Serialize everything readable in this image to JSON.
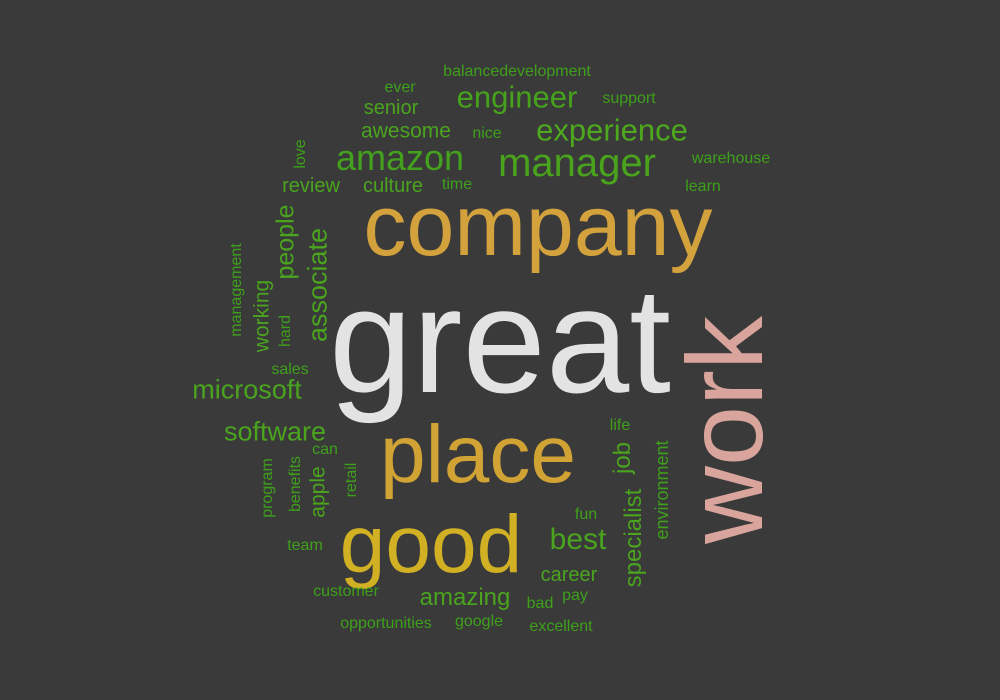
{
  "words": [
    {
      "text": "great",
      "color": "#e3e3e3",
      "vertical": false
    },
    {
      "text": "company",
      "color": "#d3a23c",
      "vertical": false
    },
    {
      "text": "work",
      "color": "#d9a49c",
      "vertical": true
    },
    {
      "text": "place",
      "color": "#d1a335",
      "vertical": false
    },
    {
      "text": "good",
      "color": "#d1b023",
      "vertical": false
    },
    {
      "text": "manager",
      "color": "#49a31c",
      "vertical": false
    },
    {
      "text": "amazon",
      "color": "#43a11e",
      "vertical": false
    },
    {
      "text": "experience",
      "color": "#4ea81d",
      "vertical": false
    },
    {
      "text": "engineer",
      "color": "#46a21c",
      "vertical": false
    },
    {
      "text": "microsoft",
      "color": "#4aa41e",
      "vertical": false
    },
    {
      "text": "software",
      "color": "#4aa41e",
      "vertical": false
    },
    {
      "text": "best",
      "color": "#4aa41e",
      "vertical": false
    },
    {
      "text": "amazing",
      "color": "#4aa41e",
      "vertical": false
    },
    {
      "text": "associate",
      "color": "#4aa41e",
      "vertical": true
    },
    {
      "text": "people",
      "color": "#4aa41e",
      "vertical": true
    },
    {
      "text": "specialist",
      "color": "#4aa41e",
      "vertical": true
    },
    {
      "text": "job",
      "color": "#4aa41e",
      "vertical": true
    },
    {
      "text": "working",
      "color": "#4aa41e",
      "vertical": true
    },
    {
      "text": "apple",
      "color": "#4aa41e",
      "vertical": true
    },
    {
      "text": "environment",
      "color": "#3ea01a",
      "vertical": true
    },
    {
      "text": "management",
      "color": "#3ea01a",
      "vertical": true
    },
    {
      "text": "culture",
      "color": "#4aa41e",
      "vertical": false
    },
    {
      "text": "review",
      "color": "#4aa41e",
      "vertical": false
    },
    {
      "text": "awesome",
      "color": "#4aa41e",
      "vertical": false
    },
    {
      "text": "senior",
      "color": "#4aa41e",
      "vertical": false
    },
    {
      "text": "career",
      "color": "#4aa41e",
      "vertical": false
    },
    {
      "text": "time",
      "color": "#3ea01a",
      "vertical": false
    },
    {
      "text": "ever",
      "color": "#3ea01a",
      "vertical": false
    },
    {
      "text": "nice",
      "color": "#3ea01a",
      "vertical": false
    },
    {
      "text": "balancedevelopment",
      "color": "#3ea01a",
      "vertical": false
    },
    {
      "text": "support",
      "color": "#3ea01a",
      "vertical": false
    },
    {
      "text": "warehouse",
      "color": "#3ea01a",
      "vertical": false
    },
    {
      "text": "learn",
      "color": "#3ea01a",
      "vertical": false
    },
    {
      "text": "love",
      "color": "#3ea01a",
      "vertical": true
    },
    {
      "text": "hard",
      "color": "#3ea01a",
      "vertical": true
    },
    {
      "text": "sales",
      "color": "#3ea01a",
      "vertical": false
    },
    {
      "text": "retail",
      "color": "#3ea01a",
      "vertical": true
    },
    {
      "text": "can",
      "color": "#3ea01a",
      "vertical": false
    },
    {
      "text": "benefits",
      "color": "#3ea01a",
      "vertical": true
    },
    {
      "text": "program",
      "color": "#3ea01a",
      "vertical": true
    },
    {
      "text": "team",
      "color": "#3ea01a",
      "vertical": false
    },
    {
      "text": "life",
      "color": "#3ea01a",
      "vertical": false
    },
    {
      "text": "fun",
      "color": "#3ea01a",
      "vertical": false
    },
    {
      "text": "customer",
      "color": "#3ea01a",
      "vertical": false
    },
    {
      "text": "bad",
      "color": "#3ea01a",
      "vertical": false
    },
    {
      "text": "pay",
      "color": "#3ea01a",
      "vertical": false
    },
    {
      "text": "opportunities",
      "color": "#3ea01a",
      "vertical": false
    },
    {
      "text": "google",
      "color": "#3ea01a",
      "vertical": false
    },
    {
      "text": "excellent",
      "color": "#3ea01a",
      "vertical": false
    }
  ]
}
